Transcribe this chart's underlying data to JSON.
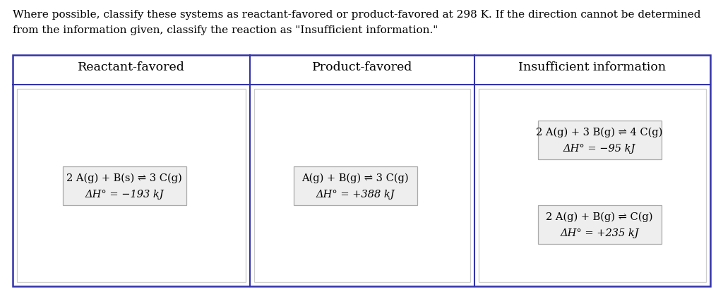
{
  "background_color": "#ffffff",
  "text_color": "#000000",
  "intro_text_line1": "Where possible, classify these systems as reactant-favored or product-favored at 298 K. If the direction cannot be determined",
  "intro_text_line2": "from the information given, classify the reaction as \"Insufficient information.\"",
  "col_headers": [
    "Reactant-favored",
    "Product-favored",
    "Insufficient information"
  ],
  "outer_border_color": "#3333aa",
  "inner_border_color": "#cccccc",
  "box_border_color": "#aaaaaa",
  "box_bg_color": "#eeeeee",
  "reactant_box": {
    "line1": "2 A(g) + B(s) ⇌ 3 C(g)",
    "line2": "ΔH° = −193 kJ"
  },
  "product_box": {
    "line1": "A(g) + B(g) ⇌ 3 C(g)",
    "line2": "ΔH° = +388 kJ"
  },
  "insufficient_box1": {
    "line1": "2 A(g) + 3 B(g) ⇌ 4 C(g)",
    "line2": "ΔH° = −95 kJ"
  },
  "insufficient_box2": {
    "line1": "2 A(g) + B(g) ⇌ C(g)",
    "line2": "ΔH° = +235 kJ"
  },
  "font_size_intro": 11.0,
  "font_size_header": 12.5,
  "font_size_box": 10.5
}
